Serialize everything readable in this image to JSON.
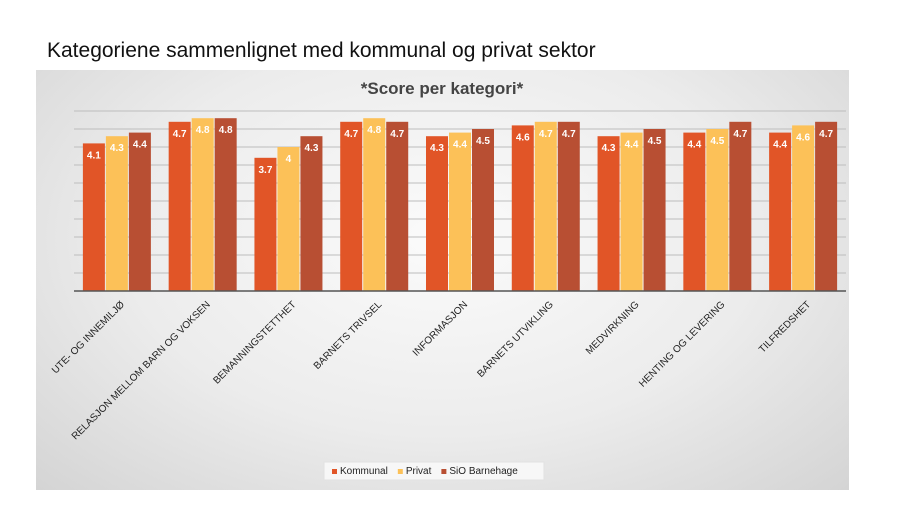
{
  "page": {
    "title": "Kategoriene sammenlignet med kommunal og privat sektor"
  },
  "colors": {
    "kommunal": "#e15527",
    "privat": "#fcc158",
    "sio": "#b84f33"
  },
  "chart_data": {
    "type": "bar",
    "title": "*Score per kategori*",
    "xlabel": "",
    "ylabel": "",
    "ylim": [
      0,
      5
    ],
    "grid": true,
    "legend_position": "bottom",
    "categories": [
      "UTE- OG INNEMILJØ",
      "RELASJON MELLOM BARN OG VOKSEN",
      "BEMANNINGSTETTHET",
      "BARNETS TRIVSEL",
      "INFORMASJON",
      "BARNETS UTVIKLING",
      "MEDVIRKNING",
      "HENTING OG LEVERING",
      "TILFREDSHET"
    ],
    "series": [
      {
        "name": "Kommunal",
        "color": "#e15527",
        "values": [
          4.1,
          4.7,
          3.7,
          4.7,
          4.3,
          4.6,
          4.3,
          4.4,
          4.4
        ]
      },
      {
        "name": "Privat",
        "color": "#fcc158",
        "values": [
          4.3,
          4.8,
          4,
          4.8,
          4.4,
          4.7,
          4.4,
          4.5,
          4.6
        ]
      },
      {
        "name": "SiO Barnehage",
        "color": "#b84f33",
        "values": [
          4.4,
          4.8,
          4.3,
          4.7,
          4.5,
          4.7,
          4.5,
          4.7,
          4.7
        ]
      }
    ]
  }
}
